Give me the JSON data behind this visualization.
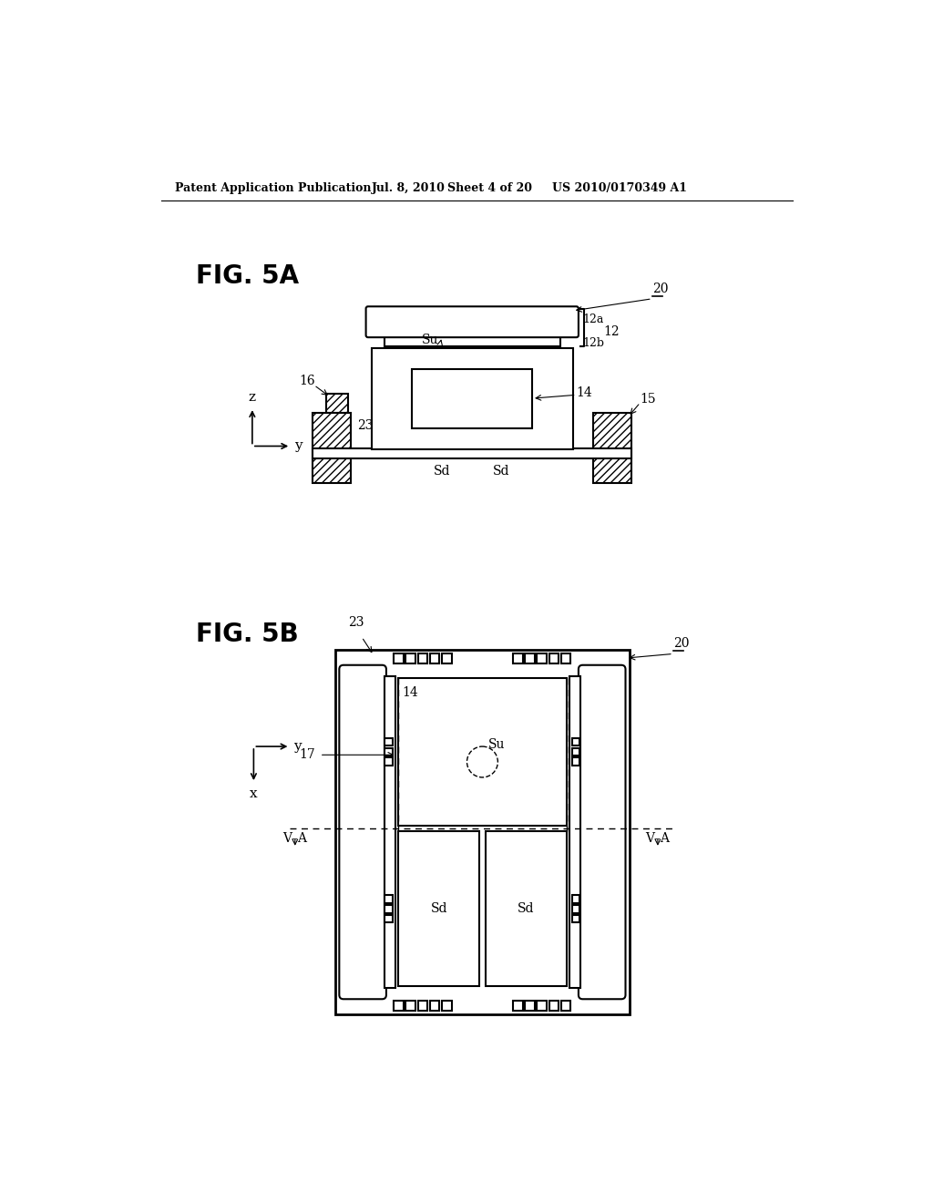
{
  "bg_color": "#ffffff",
  "header_text": "Patent Application Publication",
  "header_date": "Jul. 8, 2010",
  "header_sheet": "Sheet 4 of 20",
  "header_patent": "US 2010/0170349 A1",
  "fig5a_label": "FIG. 5A",
  "fig5b_label": "FIG. 5B",
  "line_color": "#000000"
}
